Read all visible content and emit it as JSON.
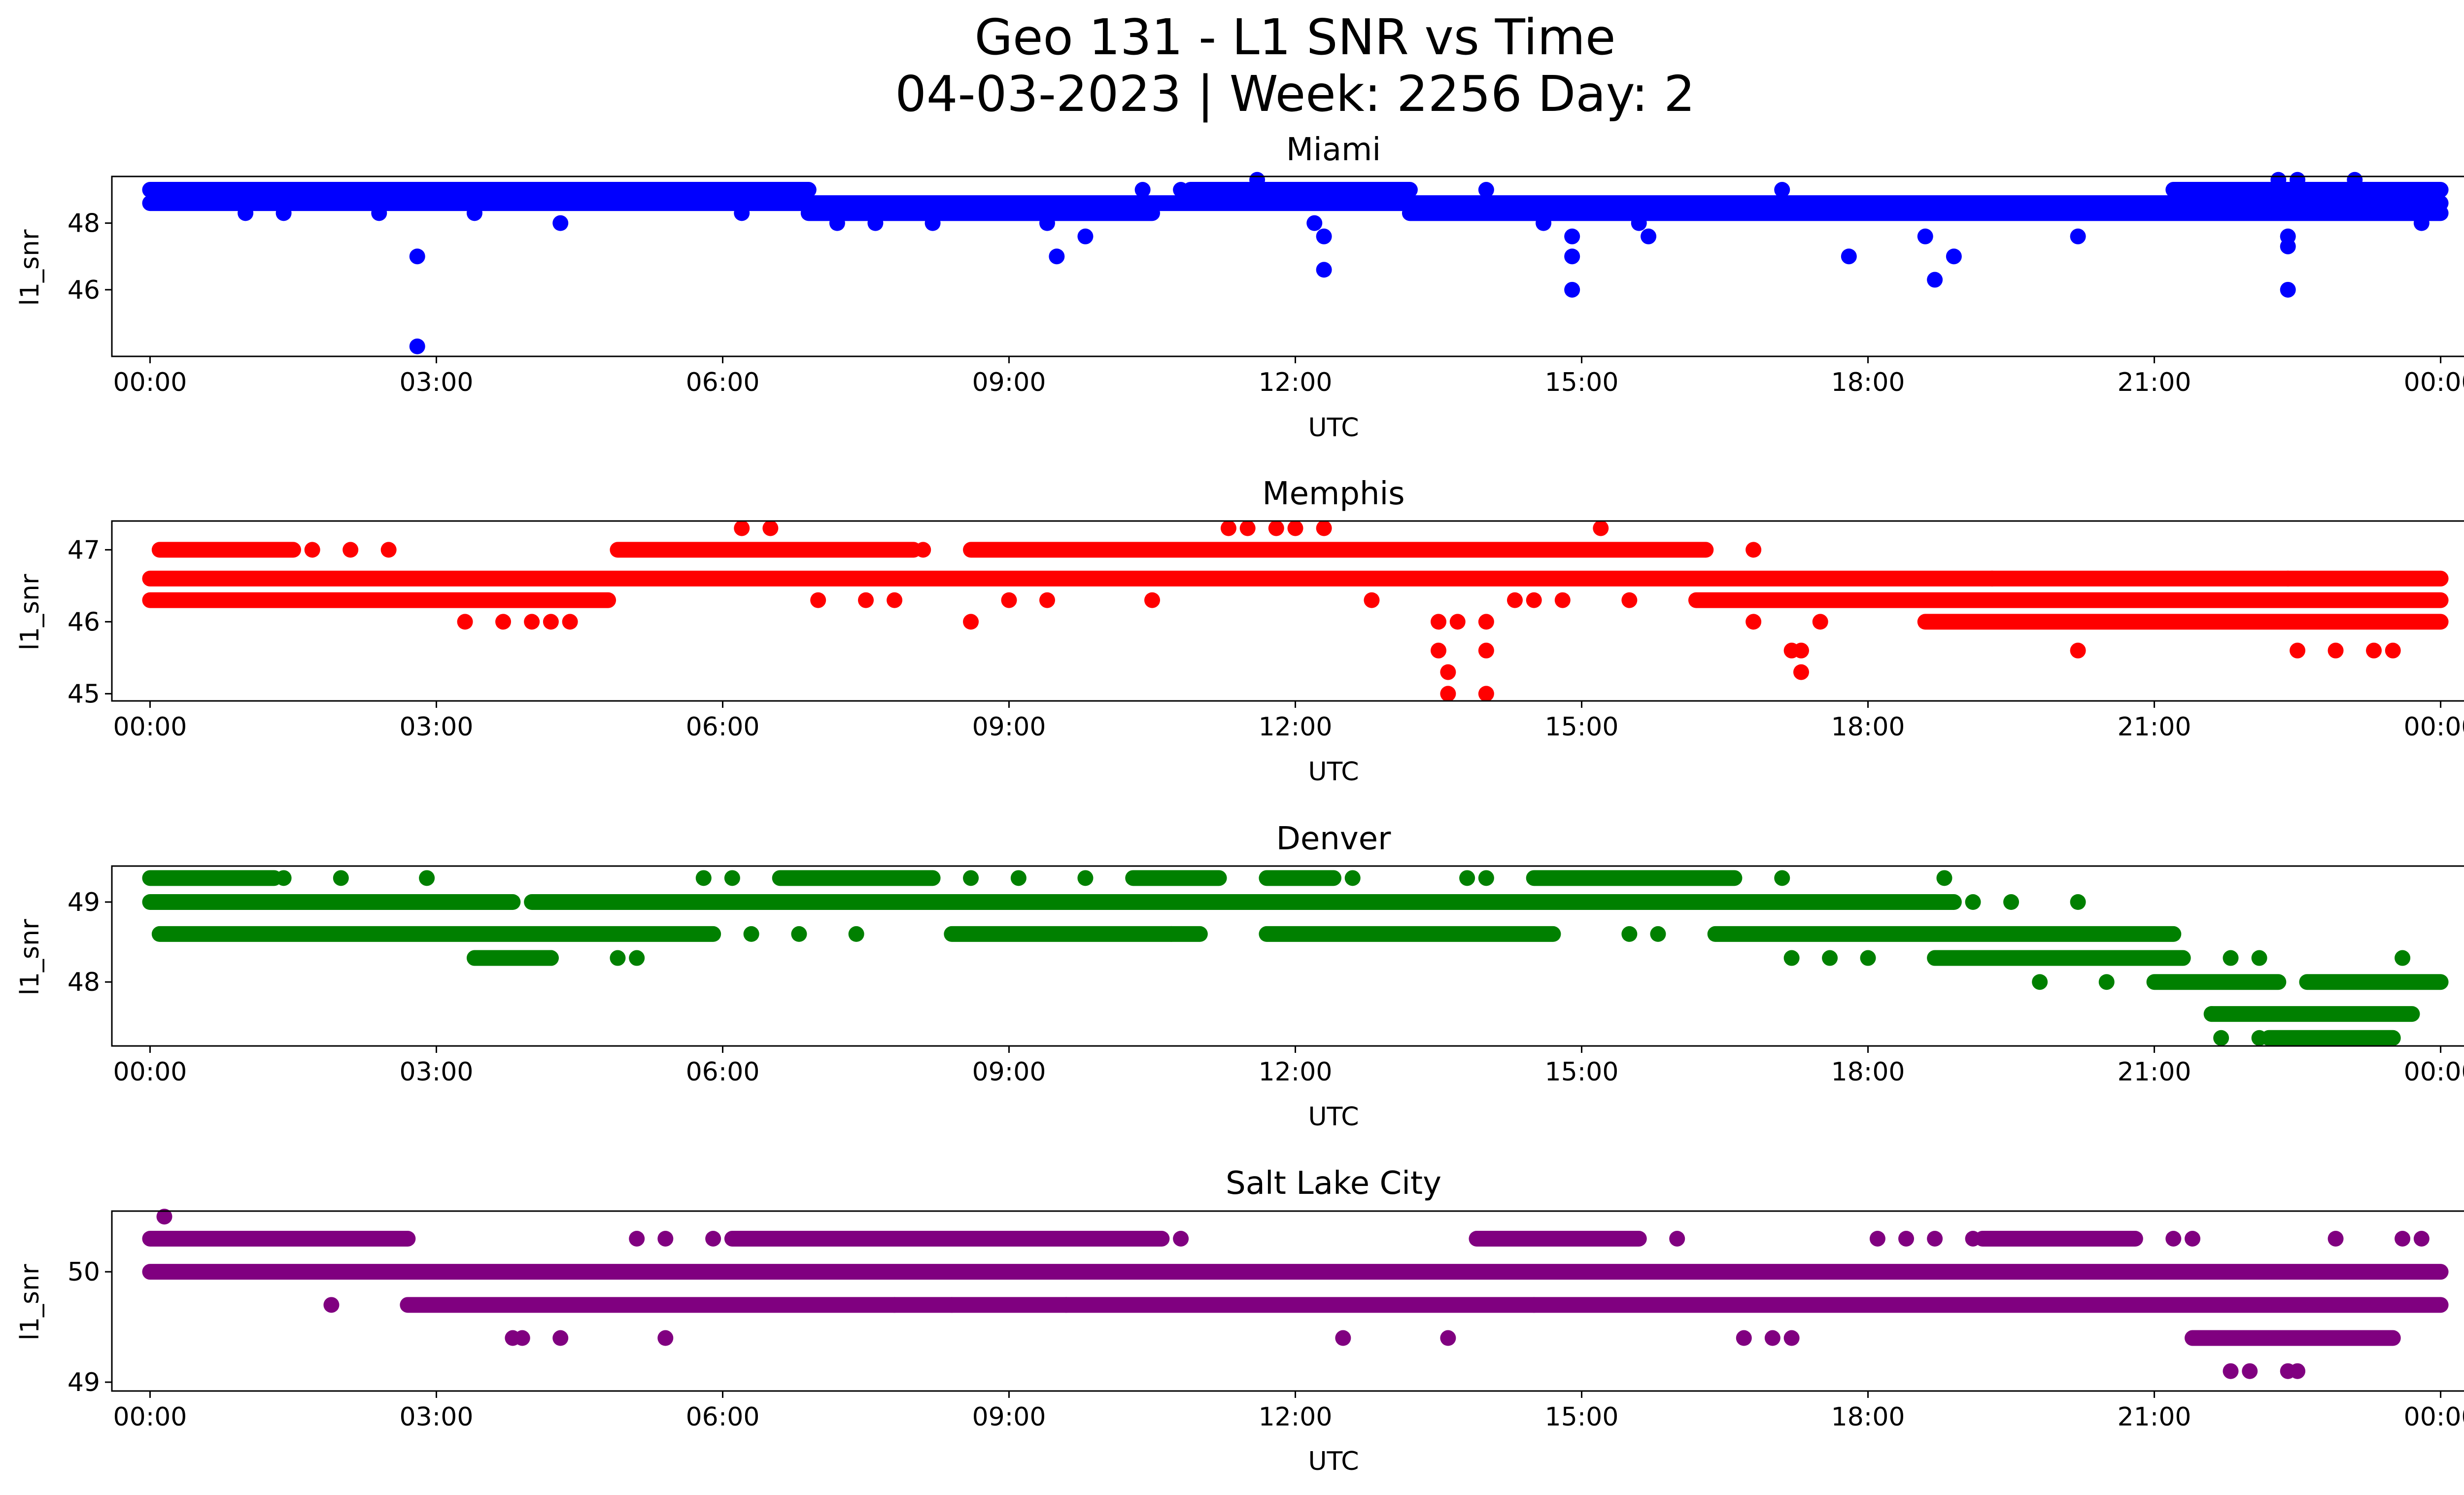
{
  "figure": {
    "title_line1": "Geo 131 - L1 SNR vs Time",
    "title_line2": "04-03-2023 | Week: 2256 Day: 2"
  },
  "chart_data": [
    {
      "type": "scatter",
      "title": "Miami",
      "xlabel": "UTC",
      "ylabel": "l1_snr",
      "color": "#0000ff",
      "x_ticks": [
        "00:00",
        "03:00",
        "06:00",
        "09:00",
        "12:00",
        "15:00",
        "18:00",
        "21:00",
        "00:00"
      ],
      "x_range_hours": [
        -0.4,
        25.2
      ],
      "y_ticks": [
        "46",
        "48"
      ],
      "ylim": [
        44.0,
        49.4
      ],
      "grid": false,
      "bands": [
        {
          "y": 48.6,
          "from": 0.0,
          "to": 24.0
        },
        {
          "y": 49.0,
          "from": 0.0,
          "to": 6.9
        },
        {
          "y": 48.3,
          "from": 6.9,
          "to": 10.5
        },
        {
          "y": 49.0,
          "from": 10.9,
          "to": 13.2
        },
        {
          "y": 48.3,
          "from": 13.2,
          "to": 24.0
        },
        {
          "y": 49.0,
          "from": 21.2,
          "to": 24.0
        }
      ],
      "points": [
        [
          0.1,
          49.0
        ],
        [
          1.0,
          48.3
        ],
        [
          1.4,
          48.3
        ],
        [
          2.4,
          48.3
        ],
        [
          2.8,
          47.0
        ],
        [
          2.8,
          44.3
        ],
        [
          3.4,
          48.3
        ],
        [
          4.3,
          48.0
        ],
        [
          4.9,
          49.0
        ],
        [
          6.2,
          48.3
        ],
        [
          7.2,
          48.0
        ],
        [
          7.6,
          48.0
        ],
        [
          8.2,
          48.0
        ],
        [
          9.4,
          48.0
        ],
        [
          9.5,
          47.0
        ],
        [
          9.8,
          47.6
        ],
        [
          10.4,
          49.0
        ],
        [
          10.8,
          49.0
        ],
        [
          11.6,
          49.3
        ],
        [
          12.2,
          48.0
        ],
        [
          12.3,
          47.6
        ],
        [
          12.3,
          46.6
        ],
        [
          14.0,
          49.0
        ],
        [
          14.6,
          48.0
        ],
        [
          14.9,
          47.6
        ],
        [
          14.9,
          47.0
        ],
        [
          14.9,
          46.0
        ],
        [
          15.6,
          48.0
        ],
        [
          15.7,
          47.6
        ],
        [
          17.1,
          49.0
        ],
        [
          17.8,
          47.0
        ],
        [
          18.6,
          47.6
        ],
        [
          18.7,
          46.3
        ],
        [
          18.9,
          47.0
        ],
        [
          20.2,
          47.6
        ],
        [
          21.6,
          48.6
        ],
        [
          22.3,
          49.3
        ],
        [
          22.4,
          47.6
        ],
        [
          22.4,
          47.3
        ],
        [
          22.4,
          46.0
        ],
        [
          22.5,
          49.3
        ],
        [
          23.1,
          49.3
        ],
        [
          23.8,
          48.0
        ]
      ]
    },
    {
      "type": "scatter",
      "title": "Memphis",
      "xlabel": "UTC",
      "ylabel": "l1_snr",
      "color": "#ff0000",
      "x_ticks": [
        "00:00",
        "03:00",
        "06:00",
        "09:00",
        "12:00",
        "15:00",
        "18:00",
        "21:00",
        "00:00"
      ],
      "x_range_hours": [
        -0.4,
        25.2
      ],
      "y_ticks": [
        "45",
        "46",
        "47"
      ],
      "ylim": [
        44.9,
        47.4
      ],
      "grid": false,
      "bands": [
        {
          "y": 46.6,
          "from": 0.0,
          "to": 24.0
        },
        {
          "y": 47.0,
          "from": 0.1,
          "to": 1.5
        },
        {
          "y": 46.3,
          "from": 0.0,
          "to": 4.8
        },
        {
          "y": 47.0,
          "from": 4.9,
          "to": 8.0
        },
        {
          "y": 47.0,
          "from": 8.6,
          "to": 16.3
        },
        {
          "y": 46.3,
          "from": 16.2,
          "to": 24.0
        },
        {
          "y": 46.0,
          "from": 18.6,
          "to": 24.0
        }
      ],
      "points": [
        [
          1.7,
          47.0
        ],
        [
          2.1,
          47.0
        ],
        [
          2.5,
          47.0
        ],
        [
          3.3,
          46.0
        ],
        [
          3.7,
          46.0
        ],
        [
          4.0,
          46.0
        ],
        [
          4.2,
          46.0
        ],
        [
          4.4,
          46.0
        ],
        [
          6.2,
          47.3
        ],
        [
          6.5,
          47.3
        ],
        [
          7.0,
          46.3
        ],
        [
          7.5,
          46.3
        ],
        [
          7.8,
          46.3
        ],
        [
          8.1,
          47.0
        ],
        [
          8.6,
          46.0
        ],
        [
          9.0,
          46.3
        ],
        [
          9.4,
          46.3
        ],
        [
          10.5,
          46.3
        ],
        [
          11.3,
          47.3
        ],
        [
          11.5,
          47.3
        ],
        [
          11.8,
          47.3
        ],
        [
          12.0,
          47.3
        ],
        [
          12.3,
          47.3
        ],
        [
          12.8,
          46.3
        ],
        [
          13.5,
          46.0
        ],
        [
          13.5,
          45.6
        ],
        [
          13.6,
          45.3
        ],
        [
          13.6,
          45.0
        ],
        [
          13.7,
          46.0
        ],
        [
          14.0,
          46.0
        ],
        [
          14.0,
          45.6
        ],
        [
          14.0,
          45.0
        ],
        [
          14.3,
          46.3
        ],
        [
          14.5,
          46.3
        ],
        [
          14.8,
          46.3
        ],
        [
          15.2,
          47.3
        ],
        [
          15.5,
          46.3
        ],
        [
          16.8,
          47.0
        ],
        [
          16.8,
          46.0
        ],
        [
          17.2,
          45.6
        ],
        [
          17.3,
          45.6
        ],
        [
          17.3,
          45.3
        ],
        [
          17.5,
          46.0
        ],
        [
          19.3,
          46.6
        ],
        [
          20.2,
          45.6
        ],
        [
          22.4,
          46.6
        ],
        [
          22.5,
          45.6
        ],
        [
          22.9,
          45.6
        ],
        [
          23.3,
          45.6
        ],
        [
          23.5,
          45.6
        ]
      ]
    },
    {
      "type": "scatter",
      "title": "Denver",
      "xlabel": "UTC",
      "ylabel": "l1_snr",
      "color": "#008000",
      "x_ticks": [
        "00:00",
        "03:00",
        "06:00",
        "09:00",
        "12:00",
        "15:00",
        "18:00",
        "21:00",
        "00:00"
      ],
      "x_range_hours": [
        -0.4,
        25.2
      ],
      "y_ticks": [
        "48",
        "49"
      ],
      "ylim": [
        47.2,
        49.45
      ],
      "grid": false,
      "bands": [
        {
          "y": 49.0,
          "from": 0.0,
          "to": 3.8
        },
        {
          "y": 49.0,
          "from": 4.0,
          "to": 18.9
        },
        {
          "y": 49.3,
          "from": 0.0,
          "to": 1.3
        },
        {
          "y": 49.3,
          "from": 6.6,
          "to": 8.2
        },
        {
          "y": 49.3,
          "from": 10.3,
          "to": 11.2
        },
        {
          "y": 49.3,
          "from": 11.7,
          "to": 12.4
        },
        {
          "y": 49.3,
          "from": 14.5,
          "to": 16.6
        },
        {
          "y": 48.6,
          "from": 0.1,
          "to": 5.9
        },
        {
          "y": 48.6,
          "from": 8.4,
          "to": 11.0
        },
        {
          "y": 48.6,
          "from": 11.7,
          "to": 14.7
        },
        {
          "y": 48.6,
          "from": 16.4,
          "to": 21.2
        },
        {
          "y": 48.3,
          "from": 3.4,
          "to": 4.2
        },
        {
          "y": 48.3,
          "from": 18.7,
          "to": 21.3
        },
        {
          "y": 48.0,
          "from": 21.0,
          "to": 22.3
        },
        {
          "y": 48.0,
          "from": 22.6,
          "to": 24.0
        },
        {
          "y": 47.6,
          "from": 21.6,
          "to": 23.7
        },
        {
          "y": 47.3,
          "from": 22.2,
          "to": 23.5
        }
      ],
      "points": [
        [
          1.4,
          49.3
        ],
        [
          2.0,
          49.3
        ],
        [
          2.9,
          49.3
        ],
        [
          4.2,
          48.3
        ],
        [
          4.9,
          48.3
        ],
        [
          5.1,
          48.3
        ],
        [
          5.8,
          49.3
        ],
        [
          6.1,
          49.3
        ],
        [
          6.3,
          48.6
        ],
        [
          6.8,
          48.6
        ],
        [
          7.4,
          48.6
        ],
        [
          8.6,
          49.3
        ],
        [
          9.1,
          49.3
        ],
        [
          9.8,
          49.3
        ],
        [
          10.7,
          48.6
        ],
        [
          12.6,
          49.3
        ],
        [
          13.8,
          49.3
        ],
        [
          14.0,
          49.3
        ],
        [
          15.5,
          48.6
        ],
        [
          15.8,
          48.6
        ],
        [
          17.1,
          49.3
        ],
        [
          17.2,
          48.3
        ],
        [
          17.6,
          48.3
        ],
        [
          18.0,
          48.3
        ],
        [
          18.8,
          49.3
        ],
        [
          19.1,
          49.0
        ],
        [
          19.5,
          49.0
        ],
        [
          19.8,
          48.0
        ],
        [
          20.2,
          49.0
        ],
        [
          20.5,
          48.0
        ],
        [
          21.6,
          47.6
        ],
        [
          21.7,
          47.3
        ],
        [
          21.8,
          48.3
        ],
        [
          22.1,
          48.3
        ],
        [
          22.1,
          47.3
        ],
        [
          23.6,
          48.3
        ]
      ]
    },
    {
      "type": "scatter",
      "title": "Salt Lake City",
      "xlabel": "UTC",
      "ylabel": "l1_snr",
      "color": "#800080",
      "x_ticks": [
        "00:00",
        "03:00",
        "06:00",
        "09:00",
        "12:00",
        "15:00",
        "18:00",
        "21:00",
        "00:00"
      ],
      "x_range_hours": [
        -0.4,
        25.2
      ],
      "y_ticks": [
        "49",
        "50"
      ],
      "ylim": [
        48.92,
        50.55
      ],
      "grid": false,
      "bands": [
        {
          "y": 50.0,
          "from": 0.0,
          "to": 24.0
        },
        {
          "y": 50.3,
          "from": 0.0,
          "to": 2.7
        },
        {
          "y": 50.3,
          "from": 6.1,
          "to": 10.6
        },
        {
          "y": 50.3,
          "from": 13.9,
          "to": 15.6
        },
        {
          "y": 50.3,
          "from": 19.2,
          "to": 20.8
        },
        {
          "y": 49.7,
          "from": 2.7,
          "to": 24.0
        },
        {
          "y": 49.4,
          "from": 21.4,
          "to": 23.5
        }
      ],
      "points": [
        [
          0.15,
          50.5
        ],
        [
          1.9,
          49.7
        ],
        [
          3.8,
          49.4
        ],
        [
          3.9,
          49.4
        ],
        [
          4.3,
          49.4
        ],
        [
          5.1,
          50.3
        ],
        [
          5.4,
          49.4
        ],
        [
          5.4,
          50.3
        ],
        [
          5.9,
          50.3
        ],
        [
          7.8,
          49.7
        ],
        [
          8.4,
          49.7
        ],
        [
          9.6,
          49.7
        ],
        [
          10.8,
          50.3
        ],
        [
          12.5,
          49.4
        ],
        [
          13.6,
          49.4
        ],
        [
          14.5,
          49.7
        ],
        [
          16.0,
          50.3
        ],
        [
          16.7,
          49.4
        ],
        [
          17.0,
          49.4
        ],
        [
          17.2,
          49.4
        ],
        [
          18.1,
          50.3
        ],
        [
          18.4,
          50.3
        ],
        [
          18.7,
          50.3
        ],
        [
          19.1,
          50.3
        ],
        [
          21.2,
          50.3
        ],
        [
          21.4,
          50.3
        ],
        [
          21.8,
          49.1
        ],
        [
          22.0,
          49.1
        ],
        [
          22.4,
          49.1
        ],
        [
          22.5,
          49.1
        ],
        [
          22.9,
          50.3
        ],
        [
          23.4,
          49.4
        ],
        [
          23.6,
          50.3
        ],
        [
          23.8,
          50.3
        ]
      ]
    }
  ]
}
